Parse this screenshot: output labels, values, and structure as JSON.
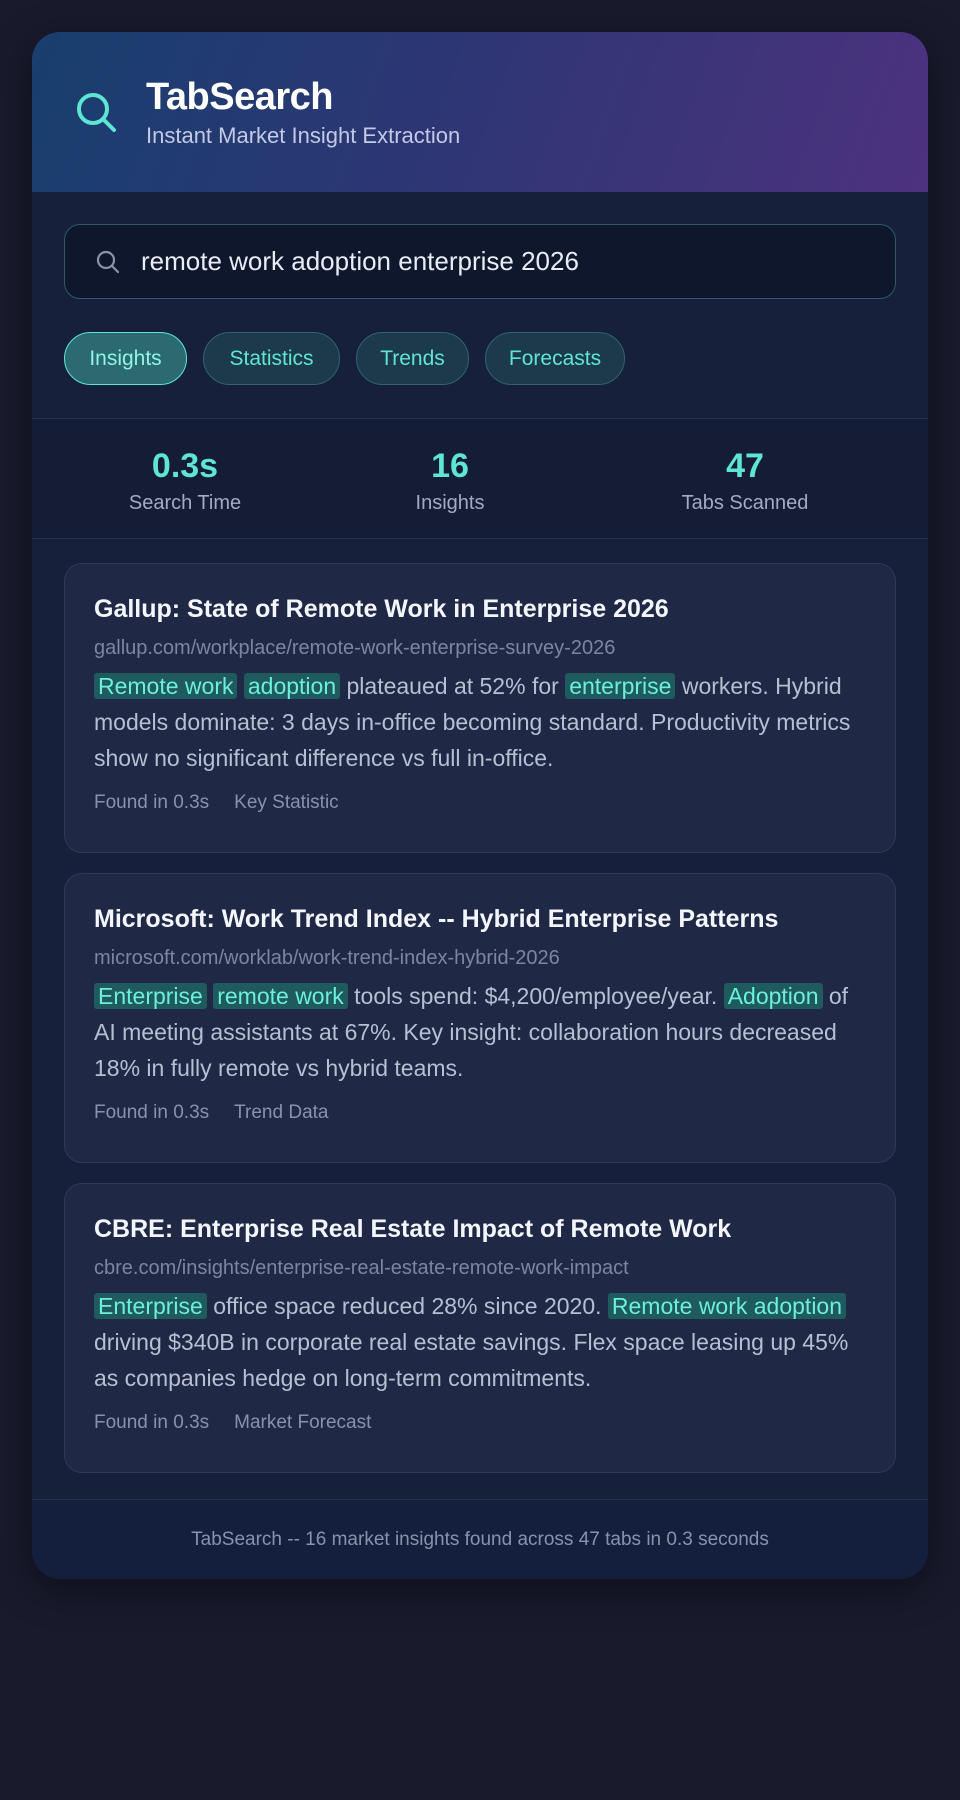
{
  "header": {
    "title": "TabSearch",
    "subtitle": "Instant Market Insight Extraction",
    "logo_icon": "search-icon",
    "accent_color": "#5fe6d2"
  },
  "search": {
    "query": "remote work adoption enterprise 2026",
    "icon": "search-icon"
  },
  "filters": [
    {
      "label": "Insights",
      "active": true
    },
    {
      "label": "Statistics",
      "active": false
    },
    {
      "label": "Trends",
      "active": false
    },
    {
      "label": "Forecasts",
      "active": false
    }
  ],
  "stats": [
    {
      "value": "0.3s",
      "label": "Search Time"
    },
    {
      "value": "16",
      "label": "Insights"
    },
    {
      "value": "47",
      "label": "Tabs Scanned"
    }
  ],
  "results": [
    {
      "title": "Gallup: State of Remote Work in Enterprise 2026",
      "url": "gallup.com/workplace/remote-work-enterprise-survey-2026",
      "snippet": [
        {
          "text": "Remote work",
          "hl": true
        },
        {
          "text": " ",
          "hl": false
        },
        {
          "text": "adoption",
          "hl": true
        },
        {
          "text": " plateaued at 52% for ",
          "hl": false
        },
        {
          "text": "enterprise",
          "hl": true
        },
        {
          "text": " workers. Hybrid models dominate: 3 days in-office becoming standard. Productivity metrics show no significant difference vs full in-office.",
          "hl": false
        }
      ],
      "found": "Found in 0.3s",
      "tag": "Key Statistic"
    },
    {
      "title": "Microsoft: Work Trend Index -- Hybrid Enterprise Patterns",
      "url": "microsoft.com/worklab/work-trend-index-hybrid-2026",
      "snippet": [
        {
          "text": "Enterprise",
          "hl": true
        },
        {
          "text": " ",
          "hl": false
        },
        {
          "text": "remote work",
          "hl": true
        },
        {
          "text": " tools spend: $4,200/employee/year. ",
          "hl": false
        },
        {
          "text": "Adoption",
          "hl": true
        },
        {
          "text": " of AI meeting assistants at 67%. Key insight: collaboration hours decreased 18% in fully remote vs hybrid teams.",
          "hl": false
        }
      ],
      "found": "Found in 0.3s",
      "tag": "Trend Data"
    },
    {
      "title": "CBRE: Enterprise Real Estate Impact of Remote Work",
      "url": "cbre.com/insights/enterprise-real-estate-remote-work-impact",
      "snippet": [
        {
          "text": "Enterprise",
          "hl": true
        },
        {
          "text": " office space reduced 28% since 2020. ",
          "hl": false
        },
        {
          "text": "Remote work adoption",
          "hl": true
        },
        {
          "text": " driving $340B in corporate real estate savings. Flex space leasing up 45% as companies hedge on long-term commitments.",
          "hl": false
        }
      ],
      "found": "Found in 0.3s",
      "tag": "Market Forecast"
    }
  ],
  "footer": {
    "text": "TabSearch -- 16 market insights found across 47 tabs in 0.3 seconds"
  }
}
